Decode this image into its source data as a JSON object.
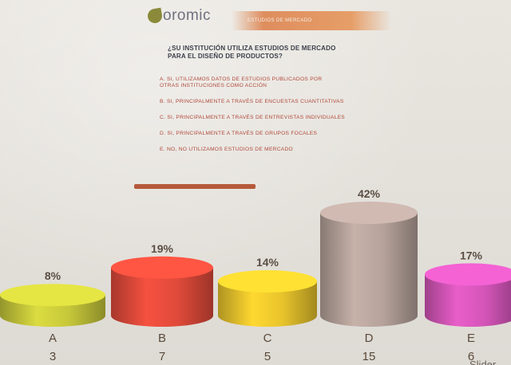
{
  "header": {
    "logo_text": "oromic",
    "band_text": "ESTUDIOS DE MERCADO"
  },
  "question": {
    "line1": "¿SU INSTITUCIÓN UTILIZA ESTUDIOS DE MERCADO",
    "line2": "PARA EL DISEÑO DE PRODUCTOS?"
  },
  "options": [
    {
      "line1": "A. SI, UTILIZAMOS DATOS DE ESTUDIOS PUBLICADOS POR",
      "line2": "OTRAS INSTITUCIONES COMO ACCIÓN"
    },
    {
      "line1": "B. SI, PRINCIPALMENTE A TRAVÉS DE ENCUESTAS CUANTITATIVAS",
      "line2": ""
    },
    {
      "line1": "C. SI, PRINCIPALMENTE A TRAVÉS DE ENTREVISTAS INDIVIDUALES",
      "line2": ""
    },
    {
      "line1": "D. SI, PRINCIPALMENTE A TRAVÉS DE GRUPOS FOCALES",
      "line2": ""
    },
    {
      "line1": "E. NO, NO UTILIZAMOS ESTUDIOS DE MERCADO",
      "line2": ""
    }
  ],
  "chart_data": {
    "type": "bar",
    "categories": [
      "A",
      "B",
      "C",
      "D",
      "E"
    ],
    "percents": [
      "8%",
      "19%",
      "14%",
      "42%",
      "17%"
    ],
    "values": [
      3,
      7,
      5,
      15,
      6
    ],
    "colors": [
      "#c7c83a",
      "#e04a3a",
      "#e8c42c",
      "#b5a29a",
      "#d455b8"
    ]
  },
  "footer_note": "Slider"
}
